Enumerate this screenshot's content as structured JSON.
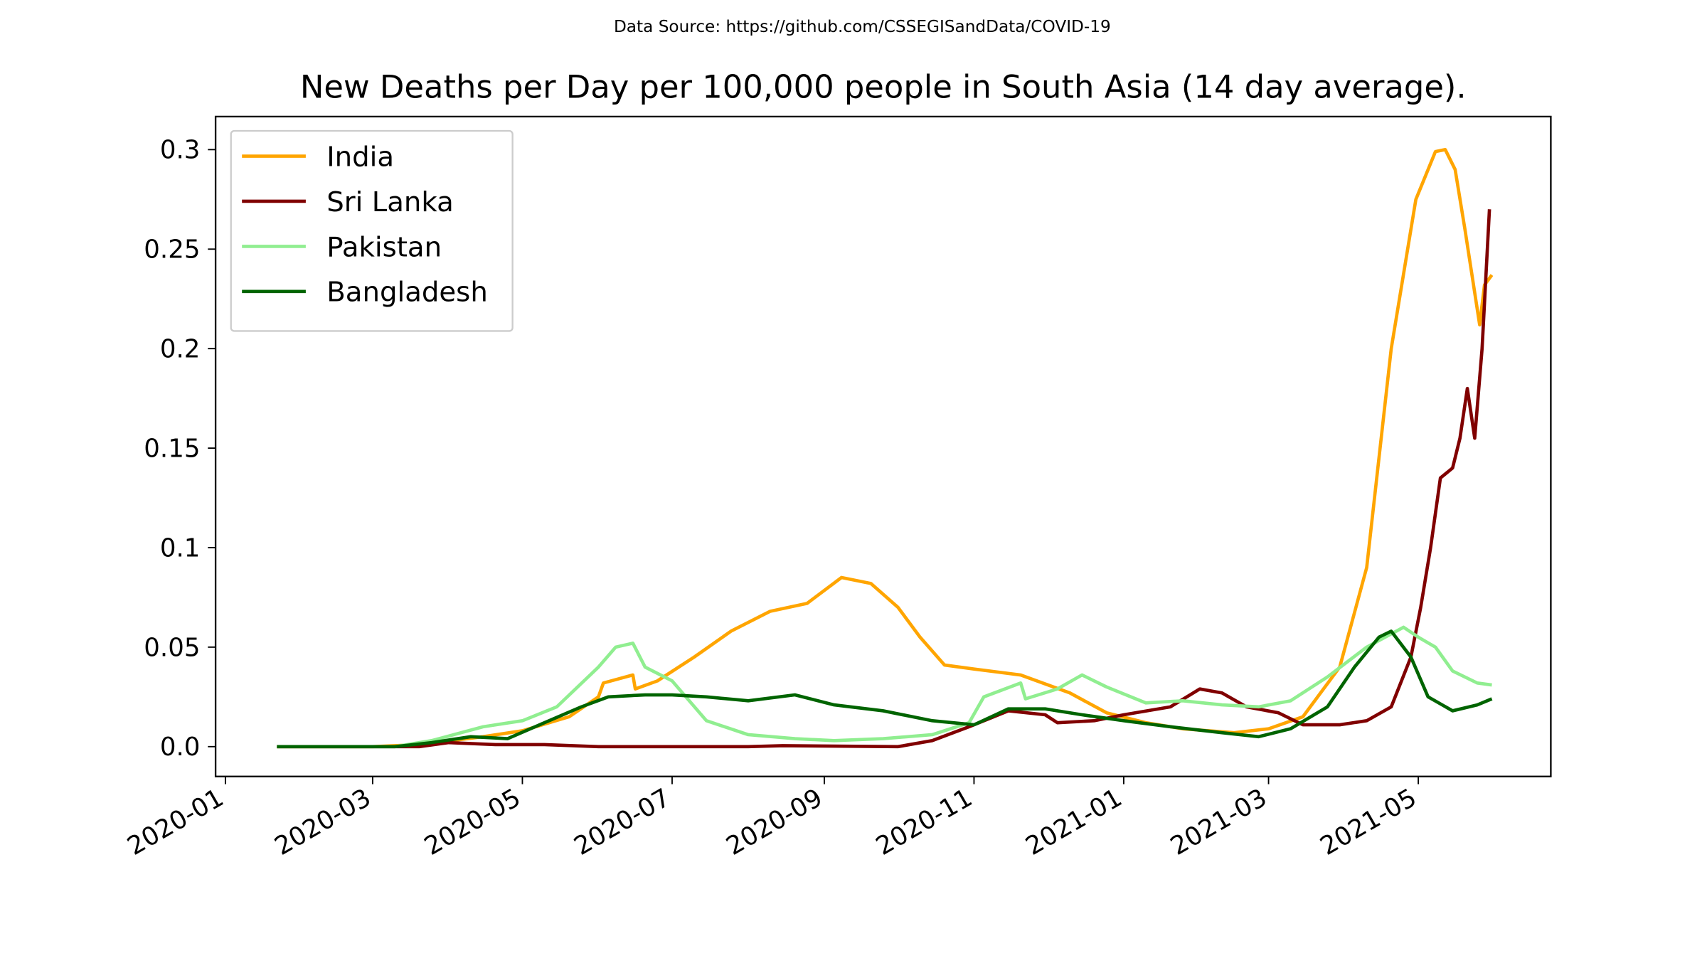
{
  "chart_data": {
    "type": "line",
    "source": "Data Source: https://github.com/CSSEGISandData/COVID-19",
    "title": "New Deaths per Day per 100,000 people in South Asia (14 day average).",
    "xlim": [
      "2019-12-28",
      "2021-06-24"
    ],
    "xticks": [
      "2020-01",
      "2020-03",
      "2020-05",
      "2020-07",
      "2020-09",
      "2020-11",
      "2021-01",
      "2021-03",
      "2021-05"
    ],
    "ylim": [
      -0.015,
      0.3166
    ],
    "yticks": [
      {
        "value": 0,
        "label": "0.0"
      },
      0.05,
      0.1,
      0.15,
      0.2,
      0.25,
      0.3
    ],
    "legend": "upper left",
    "series": [
      {
        "name": "India",
        "color": "#ffa500",
        "x": [
          "2020-01-22",
          "2020-03-01",
          "2020-03-20",
          "2020-04-15",
          "2020-05-01",
          "2020-05-20",
          "2020-06-01",
          "2020-06-03",
          "2020-06-15",
          "2020-06-16",
          "2020-06-25",
          "2020-07-10",
          "2020-07-25",
          "2020-08-10",
          "2020-08-25",
          "2020-09-08",
          "2020-09-20",
          "2020-10-01",
          "2020-10-10",
          "2020-10-20",
          "2020-11-01",
          "2020-11-20",
          "2020-12-10",
          "2020-12-25",
          "2021-01-10",
          "2021-01-25",
          "2021-02-15",
          "2021-03-01",
          "2021-03-15",
          "2021-03-30",
          "2021-04-10",
          "2021-04-20",
          "2021-04-30",
          "2021-05-08",
          "2021-05-12",
          "2021-05-16",
          "2021-05-20",
          "2021-05-26",
          "2021-05-28",
          "2021-05-31"
        ],
        "values": [
          0,
          0,
          0.001,
          0.005,
          0.008,
          0.015,
          0.025,
          0.032,
          0.036,
          0.029,
          0.033,
          0.045,
          0.058,
          0.068,
          0.072,
          0.085,
          0.082,
          0.07,
          0.055,
          0.041,
          0.039,
          0.036,
          0.027,
          0.017,
          0.012,
          0.009,
          0.007,
          0.009,
          0.015,
          0.04,
          0.09,
          0.2,
          0.275,
          0.299,
          0.3,
          0.29,
          0.26,
          0.212,
          0.232,
          0.237
        ]
      },
      {
        "name": "Sri Lanka",
        "color": "#800000",
        "x": [
          "2020-01-22",
          "2020-03-20",
          "2020-04-01",
          "2020-04-20",
          "2020-05-10",
          "2020-06-01",
          "2020-08-01",
          "2020-08-15",
          "2020-10-01",
          "2020-10-15",
          "2020-10-30",
          "2020-11-15",
          "2020-11-30",
          "2020-12-05",
          "2020-12-20",
          "2021-01-01",
          "2021-01-20",
          "2021-02-01",
          "2021-02-10",
          "2021-02-20",
          "2021-03-05",
          "2021-03-15",
          "2021-03-30",
          "2021-04-10",
          "2021-04-20",
          "2021-04-28",
          "2021-05-02",
          "2021-05-06",
          "2021-05-10",
          "2021-05-15",
          "2021-05-18",
          "2021-05-21",
          "2021-05-24",
          "2021-05-27",
          "2021-05-30"
        ],
        "values": [
          0,
          0,
          0.002,
          0.001,
          0.001,
          0,
          0,
          0.0005,
          0,
          0.003,
          0.01,
          0.018,
          0.016,
          0.012,
          0.013,
          0.016,
          0.02,
          0.029,
          0.027,
          0.02,
          0.017,
          0.011,
          0.011,
          0.013,
          0.02,
          0.045,
          0.07,
          0.1,
          0.135,
          0.14,
          0.155,
          0.18,
          0.155,
          0.2,
          0.27
        ]
      },
      {
        "name": "Pakistan",
        "color": "#90ee90",
        "x": [
          "2020-01-22",
          "2020-03-10",
          "2020-03-25",
          "2020-04-15",
          "2020-05-01",
          "2020-05-15",
          "2020-06-01",
          "2020-06-08",
          "2020-06-15",
          "2020-06-20",
          "2020-07-01",
          "2020-07-15",
          "2020-08-01",
          "2020-08-20",
          "2020-09-05",
          "2020-09-25",
          "2020-10-15",
          "2020-10-30",
          "2020-11-05",
          "2020-11-20",
          "2020-11-22",
          "2020-12-05",
          "2020-12-15",
          "2020-12-25",
          "2021-01-10",
          "2021-01-25",
          "2021-02-10",
          "2021-02-25",
          "2021-03-10",
          "2021-03-25",
          "2021-04-10",
          "2021-04-25",
          "2021-05-01",
          "2021-05-08",
          "2021-05-15",
          "2021-05-25",
          "2021-05-31"
        ],
        "values": [
          0,
          0,
          0.003,
          0.01,
          0.013,
          0.02,
          0.04,
          0.05,
          0.052,
          0.04,
          0.033,
          0.013,
          0.006,
          0.004,
          0.003,
          0.004,
          0.006,
          0.012,
          0.025,
          0.032,
          0.024,
          0.029,
          0.036,
          0.03,
          0.022,
          0.023,
          0.021,
          0.02,
          0.023,
          0.035,
          0.05,
          0.06,
          0.055,
          0.05,
          0.038,
          0.032,
          0.031
        ]
      },
      {
        "name": "Bangladesh",
        "color": "#006400",
        "x": [
          "2020-01-22",
          "2020-03-10",
          "2020-03-25",
          "2020-04-10",
          "2020-04-25",
          "2020-05-10",
          "2020-05-25",
          "2020-06-05",
          "2020-06-20",
          "2020-07-01",
          "2020-07-15",
          "2020-08-01",
          "2020-08-20",
          "2020-09-05",
          "2020-09-25",
          "2020-10-15",
          "2020-11-01",
          "2020-11-15",
          "2020-11-30",
          "2020-12-15",
          "2021-01-01",
          "2021-01-20",
          "2021-02-10",
          "2021-02-25",
          "2021-03-10",
          "2021-03-25",
          "2021-04-05",
          "2021-04-15",
          "2021-04-20",
          "2021-04-28",
          "2021-05-05",
          "2021-05-15",
          "2021-05-25",
          "2021-05-31"
        ],
        "values": [
          0,
          0,
          0.002,
          0.005,
          0.004,
          0.012,
          0.02,
          0.025,
          0.026,
          0.026,
          0.025,
          0.023,
          0.026,
          0.021,
          0.018,
          0.013,
          0.011,
          0.019,
          0.019,
          0.016,
          0.013,
          0.01,
          0.007,
          0.005,
          0.009,
          0.02,
          0.04,
          0.055,
          0.058,
          0.045,
          0.025,
          0.018,
          0.021,
          0.024
        ]
      }
    ]
  }
}
